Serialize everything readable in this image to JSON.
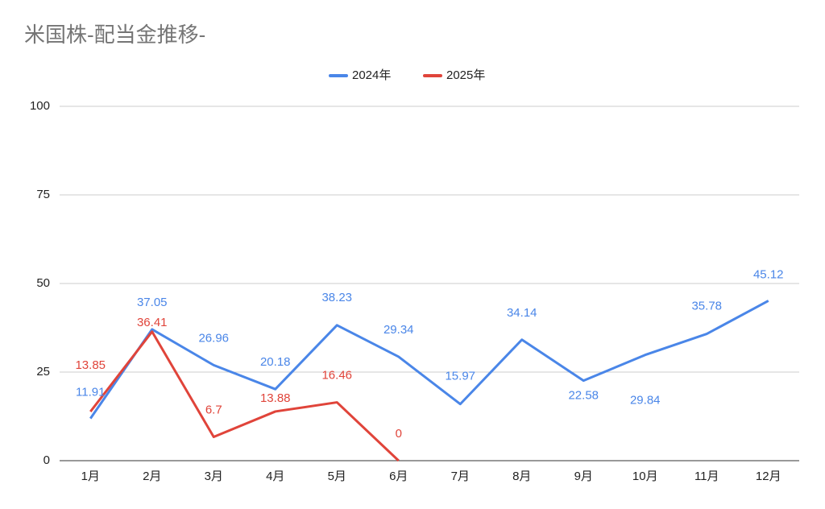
{
  "chart_data": {
    "type": "line",
    "title": "米国株-配当金推移-",
    "categories": [
      "1月",
      "2月",
      "3月",
      "4月",
      "5月",
      "6月",
      "7月",
      "8月",
      "9月",
      "10月",
      "11月",
      "12月"
    ],
    "series": [
      {
        "name": "2024年",
        "color": "#4a86e8",
        "values": [
          11.91,
          37.05,
          26.96,
          20.18,
          38.23,
          29.34,
          15.97,
          34.14,
          22.58,
          29.84,
          35.78,
          45.12
        ]
      },
      {
        "name": "2025年",
        "color": "#e0443a",
        "values": [
          13.85,
          36.41,
          6.7,
          13.88,
          16.46,
          0,
          null,
          null,
          null,
          null,
          null,
          null
        ]
      }
    ],
    "ylim": [
      0,
      100
    ],
    "yticks": [
      0,
      25,
      50,
      75,
      100
    ],
    "grid": true,
    "legend": "top"
  }
}
